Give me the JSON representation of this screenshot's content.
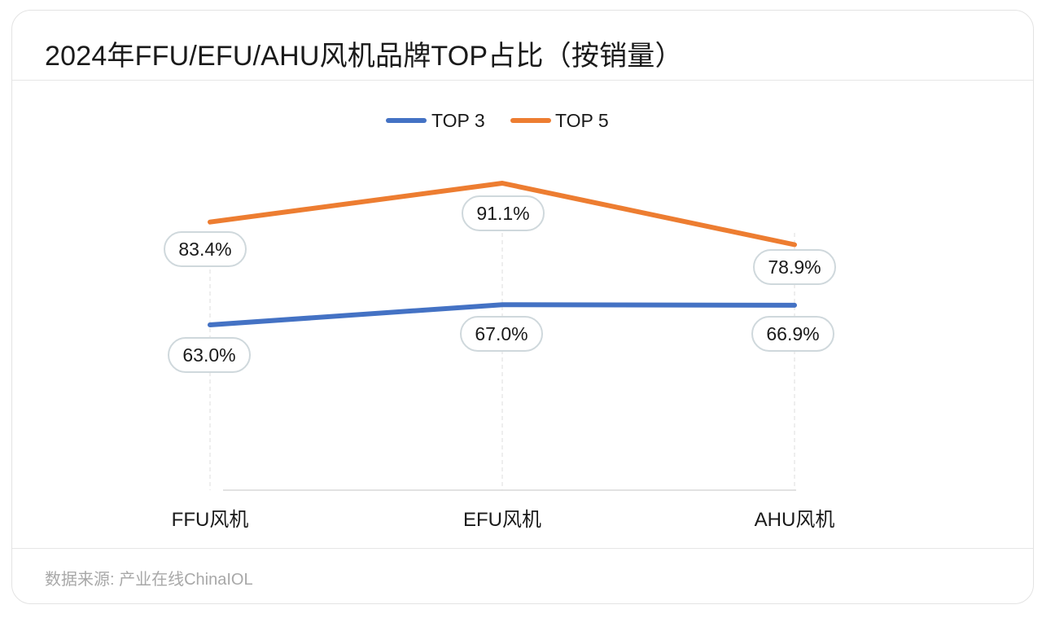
{
  "title": "2024年FFU/EFU/AHU风机品牌TOP占比（按销量）",
  "source": "数据来源: 产业在线ChinaIOL",
  "colors": {
    "top3": "#4472C4",
    "top5": "#ED7D31",
    "label_border": "#cfd8dc",
    "axis": "#d9d9d9",
    "guide": "#dcdcdc"
  },
  "chart_data": {
    "type": "line",
    "categories": [
      "FFU风机",
      "EFU风机",
      "AHU风机"
    ],
    "series": [
      {
        "name": "TOP 3",
        "values": [
          63.0,
          67.0,
          66.9
        ],
        "labels": [
          "63.0%",
          "67.0%",
          "66.9%"
        ]
      },
      {
        "name": "TOP 5",
        "values": [
          83.4,
          91.1,
          78.9
        ],
        "labels": [
          "83.4%",
          "91.1%",
          "78.9%"
        ]
      }
    ],
    "legend": "top-center",
    "grid": false
  }
}
